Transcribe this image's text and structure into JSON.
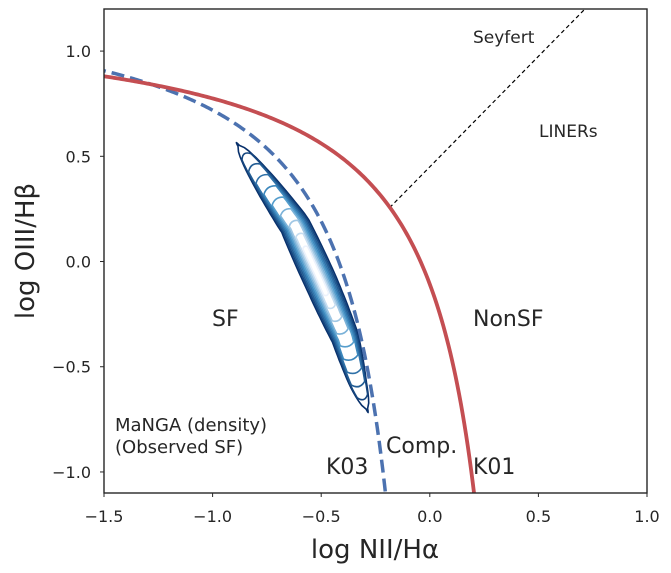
{
  "chart_data": {
    "type": "line",
    "xlabel": "log NII/Hα",
    "ylabel": "log OIII/Hβ",
    "xlim": [
      -1.5,
      1.0
    ],
    "ylim": [
      -1.1,
      1.2
    ],
    "xticks": [
      -1.5,
      -1.0,
      -0.5,
      0.0,
      0.5,
      1.0
    ],
    "xtick_labels": [
      "−1.5",
      "−1.0",
      "−0.5",
      "0.0",
      "0.5",
      "1.0"
    ],
    "yticks": [
      -1.0,
      -0.5,
      0.0,
      0.5,
      1.0
    ],
    "ytick_labels": [
      "−1.0",
      "−0.5",
      "0.0",
      "0.5",
      "1.0"
    ],
    "series": [
      {
        "name": "K01",
        "style": "solid",
        "color": "#c44e52",
        "formula": "0.61/(x-0.47)+1.19"
      },
      {
        "name": "K03",
        "style": "dashed",
        "color": "#4c72b0",
        "formula": "0.61/(x-0.05)+1.3"
      },
      {
        "name": "Seyfert/LINER division",
        "style": "dashed-thin",
        "color": "#000000",
        "formula": "1.05x+0.45"
      }
    ],
    "density": {
      "name": "MaNGA (density)",
      "ridge": [
        [
          -0.88,
          0.55
        ],
        [
          -0.62,
          0.17
        ],
        [
          -0.5,
          -0.1
        ],
        [
          -0.39,
          -0.36
        ],
        [
          -0.33,
          -0.58
        ],
        [
          -0.29,
          -0.7
        ]
      ],
      "levels": 10,
      "colormap": "blue-to-white"
    },
    "annotations": {
      "seyfert": "Seyfert",
      "liners": "LINERs",
      "sf": "SF",
      "nonsf": "NonSF",
      "comp": "Comp.",
      "k03": "K03",
      "k01": "K01",
      "legend_line1": "MaNGA (density)",
      "legend_line2": "(Observed SF)"
    },
    "annotation_colors": {
      "sf": "#0000cc",
      "nonsf": "#ff0000",
      "comp": "#008000"
    }
  }
}
